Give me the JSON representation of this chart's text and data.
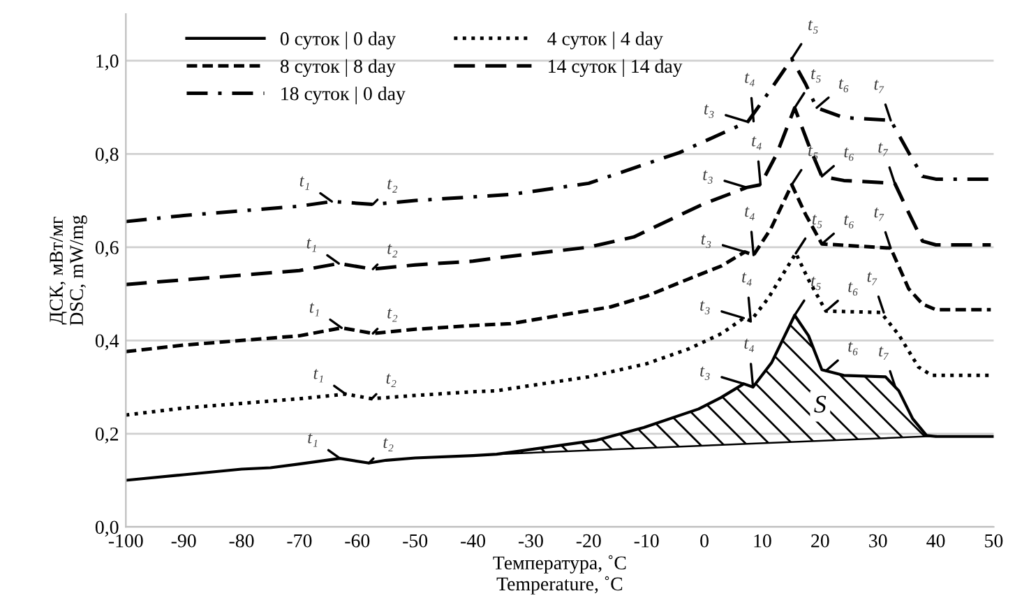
{
  "chart_data": {
    "type": "line",
    "xlabel": "Температура, ˚С\nTemperature, ˚С",
    "ylabel": "ДСК, мВт/мг\nDSC, mW/mg",
    "xlim": [
      -100,
      50
    ],
    "xticks": [
      -100,
      -90,
      -80,
      -70,
      -60,
      -50,
      -40,
      -30,
      -20,
      -10,
      0,
      10,
      20,
      30,
      40,
      50
    ],
    "ylim": [
      0,
      1.1
    ],
    "yticks": [
      {
        "value": 0,
        "label": "0,0"
      },
      {
        "value": 0.2,
        "label": "0,2"
      },
      {
        "value": 0.4,
        "label": "0,4"
      },
      {
        "value": 0.6,
        "label": "0,6"
      },
      {
        "value": 0.8,
        "label": "0,8"
      },
      {
        "value": 1.0,
        "label": "1,0"
      }
    ],
    "grid": "y",
    "legend": "top left",
    "series": [
      {
        "name": "0 суток | 0 day",
        "color": "#000000",
        "line_style": "solid",
        "x": [
          -100,
          -90,
          -80,
          -75,
          -70,
          -63,
          -58,
          -55,
          -50,
          -40,
          -35.9,
          -18.6,
          -10.5,
          -1,
          2.8,
          6.8,
          8.4,
          11.6,
          15.6,
          18,
          20.3,
          24.1,
          31.3,
          33.6,
          36,
          38.4,
          40,
          50
        ],
        "values": [
          0.1,
          0.112,
          0.124,
          0.127,
          0.135,
          0.147,
          0.137,
          0.143,
          0.148,
          0.153,
          0.156,
          0.186,
          0.213,
          0.253,
          0.277,
          0.307,
          0.3,
          0.352,
          0.454,
          0.41,
          0.337,
          0.325,
          0.322,
          0.292,
          0.232,
          0.196,
          0.194,
          0.194
        ]
      },
      {
        "name": "4 суток | 4 day",
        "color": "#000000",
        "line_style": "dotted",
        "x": [
          -100,
          -90,
          -80,
          -70,
          -62,
          -57.5,
          -50,
          -40,
          -36,
          -20,
          -10,
          -2.7,
          3,
          6.8,
          8,
          11,
          15.8,
          18,
          21,
          30.5,
          33.6,
          37,
          39.3,
          50
        ],
        "values": [
          0.24,
          0.255,
          0.265,
          0.275,
          0.285,
          0.275,
          0.282,
          0.29,
          0.292,
          0.322,
          0.35,
          0.382,
          0.415,
          0.448,
          0.442,
          0.49,
          0.587,
          0.53,
          0.463,
          0.46,
          0.412,
          0.343,
          0.325,
          0.325
        ]
      },
      {
        "name": "8 суток | 8 day",
        "color": "#000000",
        "line_style": "dashed",
        "x": [
          -100,
          -90,
          -80,
          -70,
          -62.7,
          -57.3,
          -50,
          -40,
          -33.5,
          -16.2,
          -10,
          -2.7,
          3,
          7,
          8.5,
          11.5,
          15.1,
          17.5,
          20.3,
          32.2,
          35.3,
          37.7,
          40,
          49.5
        ],
        "values": [
          0.376,
          0.39,
          0.4,
          0.41,
          0.427,
          0.415,
          0.424,
          0.432,
          0.436,
          0.472,
          0.495,
          0.532,
          0.56,
          0.59,
          0.583,
          0.64,
          0.734,
          0.67,
          0.607,
          0.598,
          0.511,
          0.478,
          0.466,
          0.466
        ]
      },
      {
        "name": "14 суток | 14 day",
        "color": "#000000",
        "line_style": "longdash",
        "x": [
          -100,
          -90,
          -80,
          -70,
          -63.2,
          -57.3,
          -50,
          -40,
          -35.9,
          -20,
          -12.2,
          -0.3,
          7.3,
          9.7,
          12.5,
          15.6,
          18,
          20.3,
          24.1,
          32.9,
          35.3,
          37.7,
          40,
          49.5
        ],
        "values": [
          0.52,
          0.53,
          0.54,
          0.55,
          0.565,
          0.553,
          0.562,
          0.57,
          0.577,
          0.6,
          0.622,
          0.692,
          0.728,
          0.734,
          0.8,
          0.899,
          0.82,
          0.752,
          0.743,
          0.737,
          0.674,
          0.613,
          0.605,
          0.605
        ]
      },
      {
        "name": "18 суток | 0 day",
        "color": "#000000",
        "line_style": "dashdot",
        "x": [
          -100,
          -90,
          -80,
          -70,
          -64.4,
          -57.3,
          -50,
          -40,
          -33.5,
          -20,
          -4.3,
          7.5,
          11,
          15.1,
          17.5,
          19.4,
          24.1,
          32.2,
          35.3,
          37.7,
          40,
          50
        ],
        "values": [
          0.655,
          0.668,
          0.678,
          0.688,
          0.698,
          0.692,
          0.7,
          0.708,
          0.713,
          0.737,
          0.803,
          0.869,
          0.93,
          1.004,
          0.95,
          0.899,
          0.878,
          0.872,
          0.803,
          0.752,
          0.746,
          0.746
        ]
      },
      {
        "type": "line",
        "color": "#000000",
        "line_style": "solid",
        "x": [
          -35.9,
          40
        ],
        "values": [
          0.156,
          0.195
        ]
      }
    ],
    "annotations": [
      {
        "text": "t₁",
        "x": -63,
        "y": 0.147
      },
      {
        "text": "t₂",
        "x": -58,
        "y": 0.137
      },
      {
        "text": "t₃",
        "x": 6.8,
        "y": 0.307
      },
      {
        "text": "t₄",
        "x": 8.4,
        "y": 0.3
      },
      {
        "text": "t₅",
        "x": 15.6,
        "y": 0.454
      },
      {
        "text": "t₆",
        "x": 21,
        "y": 0.335
      },
      {
        "text": "t₇",
        "x": 33,
        "y": 0.3
      },
      {
        "text": "t₁",
        "x": -62,
        "y": 0.285
      },
      {
        "text": "t₂",
        "x": -57.5,
        "y": 0.275
      },
      {
        "text": "t₃",
        "x": 6.8,
        "y": 0.448
      },
      {
        "text": "t₄",
        "x": 8,
        "y": 0.442
      },
      {
        "text": "t₅",
        "x": 15.8,
        "y": 0.587
      },
      {
        "text": "t₆",
        "x": 21,
        "y": 0.463
      },
      {
        "text": "t₇",
        "x": 31,
        "y": 0.46
      },
      {
        "text": "t₁",
        "x": -62.7,
        "y": 0.427
      },
      {
        "text": "t₂",
        "x": -57.3,
        "y": 0.415
      },
      {
        "text": "t₃",
        "x": 7,
        "y": 0.59
      },
      {
        "text": "t₄",
        "x": 8.5,
        "y": 0.583
      },
      {
        "text": "t₅",
        "x": 15.1,
        "y": 0.734
      },
      {
        "text": "t₆",
        "x": 20.3,
        "y": 0.607
      },
      {
        "text": "t₇",
        "x": 32.2,
        "y": 0.598
      },
      {
        "text": "t₁",
        "x": -63.2,
        "y": 0.565
      },
      {
        "text": "t₂",
        "x": -57.3,
        "y": 0.553
      },
      {
        "text": "t₃",
        "x": 7.3,
        "y": 0.728
      },
      {
        "text": "t₄",
        "x": 9.7,
        "y": 0.734
      },
      {
        "text": "t₅",
        "x": 15.6,
        "y": 0.899
      },
      {
        "text": "t₆",
        "x": 20.3,
        "y": 0.752
      },
      {
        "text": "t₇",
        "x": 32.9,
        "y": 0.737
      },
      {
        "text": "t₁",
        "x": -64.4,
        "y": 0.698
      },
      {
        "text": "t₂",
        "x": -57.3,
        "y": 0.692
      },
      {
        "text": "t₃",
        "x": 7.5,
        "y": 0.869
      },
      {
        "text": "t₄",
        "x": 8.5,
        "y": 0.87
      },
      {
        "text": "t₅",
        "x": 15.1,
        "y": 1.004
      },
      {
        "text": "t₆",
        "x": 19.4,
        "y": 0.899
      },
      {
        "text": "t₇",
        "x": 32.2,
        "y": 0.872
      },
      "S"
    ]
  }
}
